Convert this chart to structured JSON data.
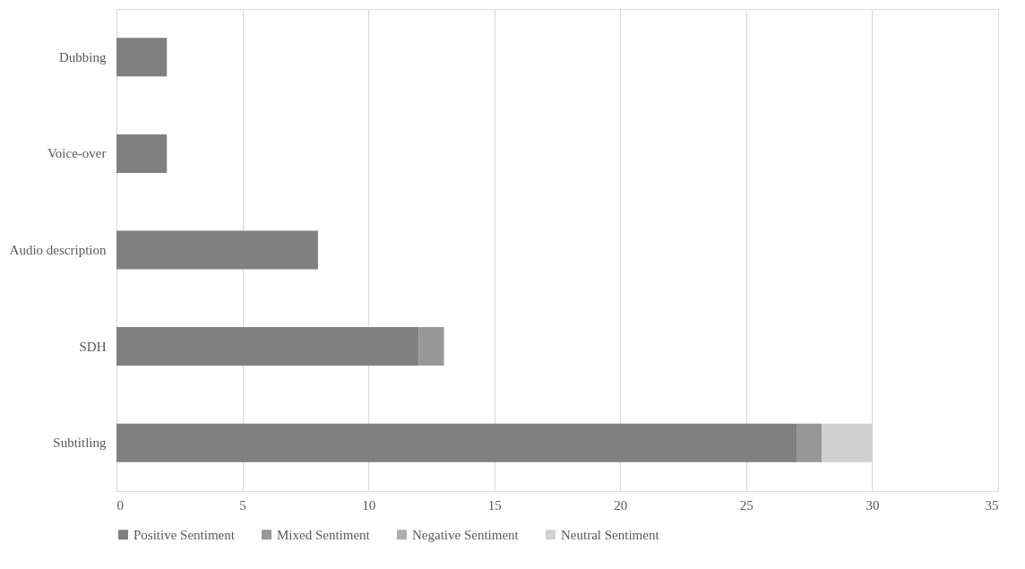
{
  "chart_data": {
    "type": "bar",
    "orientation": "horizontal",
    "stacked": true,
    "categories": [
      "Dubbing",
      "Voice-over",
      "Audio description",
      "SDH",
      "Subtitling"
    ],
    "series": [
      {
        "name": "Positive Sentiment",
        "color": "#808080",
        "values": [
          2,
          2,
          8,
          12,
          27
        ]
      },
      {
        "name": "Mixed Sentiment",
        "color": "#979797",
        "values": [
          0,
          0,
          0,
          1,
          1
        ]
      },
      {
        "name": "Negative Sentiment",
        "color": "#b0b0b0",
        "values": [
          0,
          0,
          0,
          0,
          0
        ]
      },
      {
        "name": "Neutral Sentiment",
        "color": "#d1d1d1",
        "values": [
          0,
          0,
          0,
          0,
          2
        ]
      }
    ],
    "xlim": [
      0,
      35
    ],
    "xticks": [
      0,
      5,
      10,
      15,
      20,
      25,
      30,
      35
    ],
    "grid": "x",
    "legend": "bottom"
  }
}
